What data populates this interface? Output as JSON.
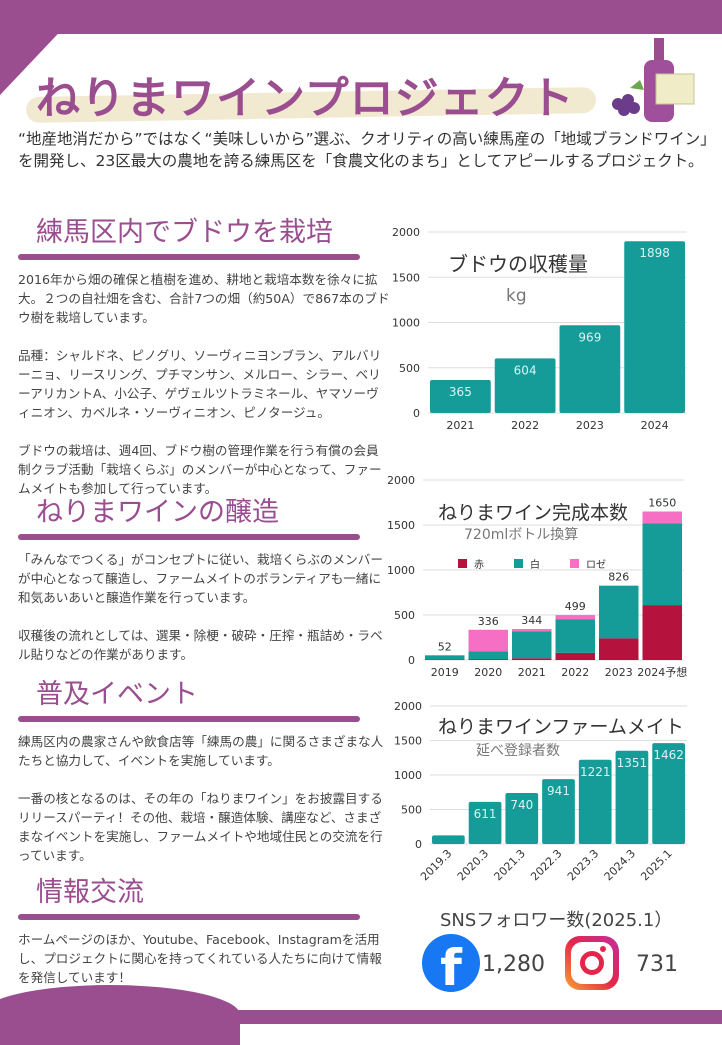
{
  "header": {
    "title": "ねりまワインプロジェクト",
    "intro": "“地産地消だから”ではなく“美味しいから”選ぶ、クオリティの高い練馬産の「地域ブランドワイン」を開発し、23区最大の農地を誇る練馬区を「食農文化のまち」としてアピールするプロジェクト。",
    "logo_text": "ねりまワインプロジェクト"
  },
  "sections": [
    {
      "heading": "練馬区内でブドウを栽培",
      "paragraphs": [
        "2016年から畑の確保と植樹を進め、耕地と栽培本数を徐々に拡大。２つの自社畑を含む、合計7つの畑（約50A）で867本のブドウ樹を栽培しています。",
        "品種：シャルドネ、ピノグリ、ソーヴィニヨンブラン、アルバリーニョ、リースリング、プチマンサン、メルロー、シラー、ベリーアリカントA、小公子、ゲヴェルツトラミネール、ヤマソーヴィニオン、カベルネ・ソーヴィニオン、ピノタージュ。",
        "ブドウの栽培は、週4回、ブドウ樹の管理作業を行う有償の会員制クラブ活動「栽培くらぶ」のメンバーが中心となって、ファームメイトも参加して行っています。"
      ]
    },
    {
      "heading": "ねりまワインの醸造",
      "paragraphs": [
        "「みんなでつくる」がコンセプトに従い、栽培くらぶのメンバーが中心となって醸造し、ファームメイトのボランティアも一緒に和気あいあいと醸造作業を行っています。",
        "収穫後の流れとしては、選果・除梗・破砕・圧搾・瓶詰め・ラベル貼りなどの作業があります。"
      ]
    },
    {
      "heading": "普及イベント",
      "paragraphs": [
        "練馬区内の農家さんや飲食店等「練馬の農」に関るさまざまな人たちと協力して、イベントを実施しています。",
        "一番の核となるのは、その年の「ねりまワイン」をお披露目するリリースパーティ！その他、栽培・醸造体験、講座など、さまざまなイベントを実施し、ファームメイトや地域住民との交流を行っています。"
      ]
    },
    {
      "heading": "情報交流",
      "paragraphs": [
        "ホームページのほか、Youtube、Facebook、Instagramを活用し、プロジェクトに関心を持ってくれている人たちに向けて情報を発信しています！"
      ]
    }
  ],
  "sns": {
    "title": "SNSフォロワー数(2025.1）",
    "facebook": {
      "icon": "facebook-icon",
      "count": "1,280"
    },
    "instagram": {
      "icon": "instagram-icon",
      "count": "731"
    }
  },
  "colors": {
    "brand": "#9a4e90",
    "teal": "#169c98",
    "red": "#b5123e",
    "white_wine": "#8cc26a",
    "rose": "#f56fc4"
  },
  "chart_data": [
    {
      "type": "bar",
      "title": "ブドウの収穫量",
      "subtitle": "kg",
      "categories": [
        "2021",
        "2022",
        "2023",
        "2024"
      ],
      "values": [
        365,
        604,
        969,
        1898
      ],
      "data_labels": [
        "365",
        "604",
        "969",
        "1898"
      ],
      "yticks": [
        "0",
        "500",
        "1000",
        "1500",
        "2000"
      ],
      "ylim": [
        0,
        2000
      ],
      "grid": true
    },
    {
      "type": "bar",
      "stacked": true,
      "title": "ねりまワイン完成本数",
      "subtitle": "720mlボトル換算",
      "legend_position": "top",
      "categories": [
        "2019",
        "2020",
        "2021",
        "2022",
        "2023",
        "2024予想"
      ],
      "series": [
        {
          "name": "赤",
          "color": "#b5123e",
          "values": [
            5,
            10,
            20,
            80,
            240,
            610
          ]
        },
        {
          "name": "白",
          "color": "#169c98",
          "values": [
            47,
            85,
            300,
            370,
            586,
            910
          ]
        },
        {
          "name": "ロゼ",
          "color": "#f56fc4",
          "values": [
            0,
            241,
            24,
            49,
            0,
            130
          ]
        }
      ],
      "totals": [
        "52",
        "336",
        "344",
        "499",
        "826",
        "1650"
      ],
      "yticks": [
        "0",
        "500",
        "1000",
        "1500",
        "2000"
      ],
      "ylim": [
        0,
        2000
      ],
      "grid": true
    },
    {
      "type": "bar",
      "title": "ねりまワインファームメイト",
      "subtitle": "延べ登録者数",
      "categories": [
        "2019.3",
        "2020.3",
        "2021.3",
        "2022.3",
        "2023.3",
        "2024.3",
        "2025.1"
      ],
      "values": [
        125,
        611,
        740,
        941,
        1221,
        1351,
        1462
      ],
      "data_labels": [
        "",
        "611",
        "740",
        "941",
        "1221",
        "1351",
        "1462"
      ],
      "yticks": [
        "0",
        "500",
        "1000",
        "1500",
        "2000"
      ],
      "ylim": [
        0,
        2000
      ],
      "grid": true
    }
  ]
}
